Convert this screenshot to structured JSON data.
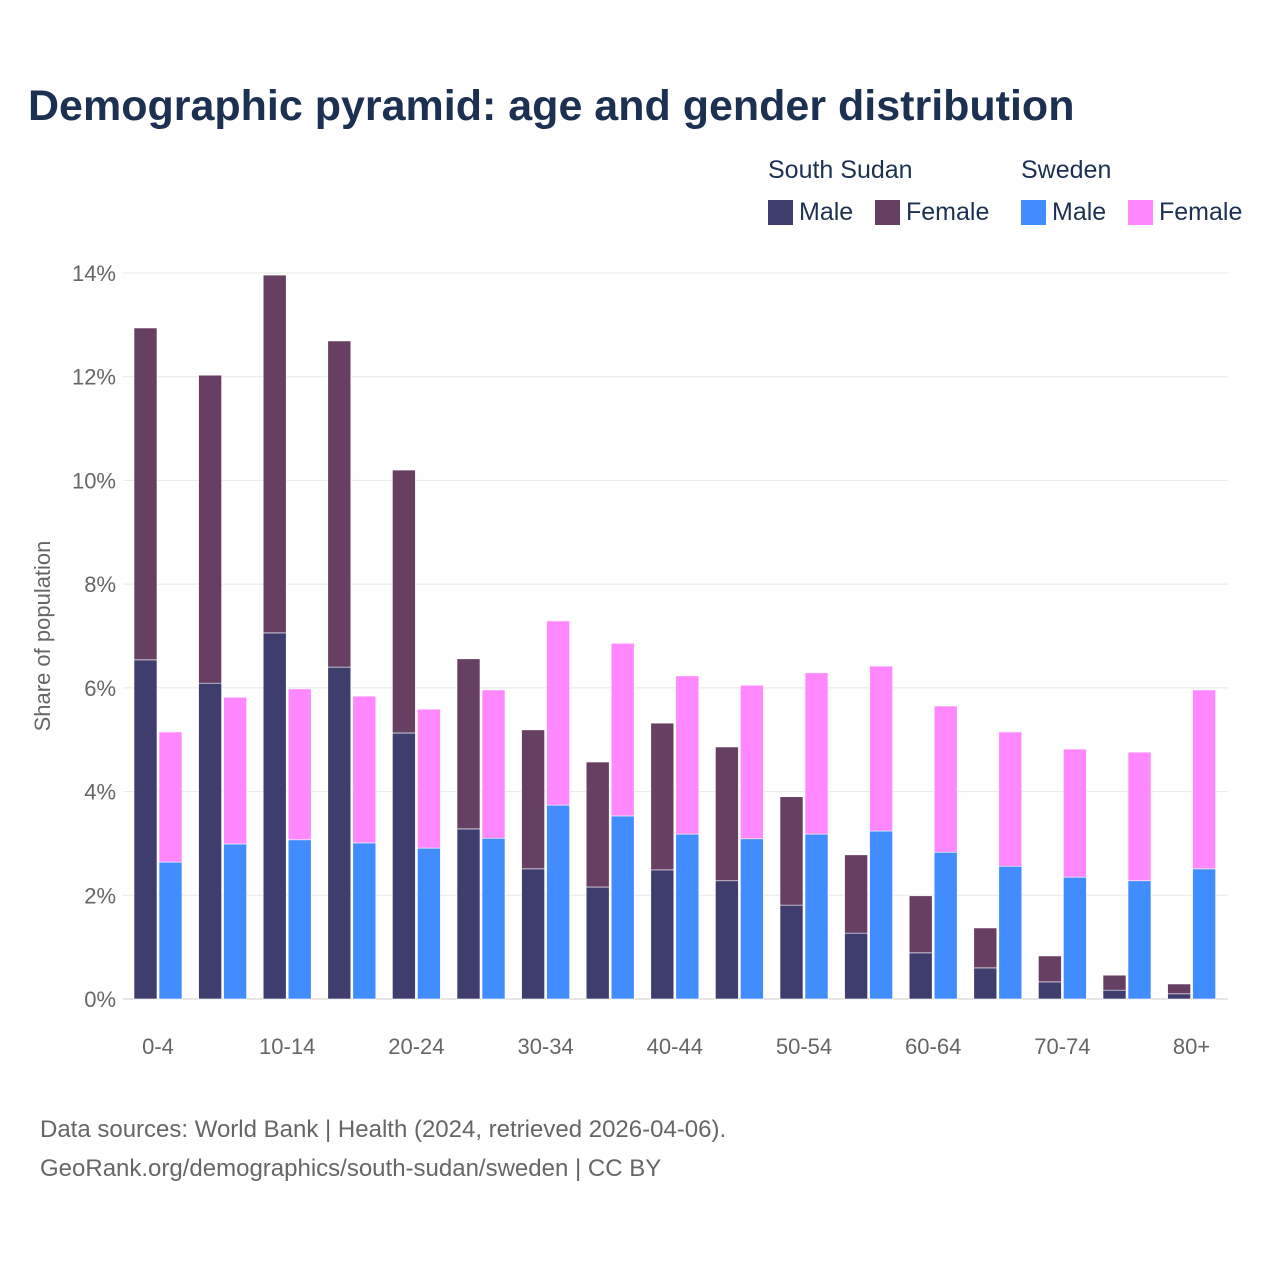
{
  "chart_data": {
    "type": "bar",
    "stacked": true,
    "title": "Demographic pyramid: age and gender distribution",
    "ylabel": "Share of population",
    "xlabel": "",
    "ylim": [
      0,
      14
    ],
    "yticks": [
      "0%",
      "2%",
      "4%",
      "6%",
      "8%",
      "10%",
      "12%",
      "14%"
    ],
    "grid": true,
    "legend_position": "top-right",
    "categories": [
      "0-4",
      "5-9",
      "10-14",
      "15-19",
      "20-24",
      "25-29",
      "30-34",
      "35-39",
      "40-44",
      "45-49",
      "50-54",
      "55-59",
      "60-64",
      "65-69",
      "70-74",
      "75-79",
      "80+"
    ],
    "xtick_labels": [
      "0-4",
      "",
      "10-14",
      "",
      "20-24",
      "",
      "30-34",
      "",
      "40-44",
      "",
      "50-54",
      "",
      "60-64",
      "",
      "70-74",
      "",
      "80+"
    ],
    "countries": [
      {
        "name": "South Sudan",
        "series": [
          {
            "name": "Male",
            "color": "#3f3d6e",
            "values": [
              6.54,
              6.09,
              7.06,
              6.4,
              5.13,
              3.28,
              2.51,
              2.16,
              2.49,
              2.28,
              1.81,
              1.27,
              0.89,
              0.6,
              0.33,
              0.17,
              0.1
            ]
          },
          {
            "name": "Female",
            "color": "#673f63",
            "values": [
              6.4,
              5.94,
              6.9,
              6.29,
              5.07,
              3.28,
              2.68,
              2.41,
              2.83,
              2.58,
              2.09,
              1.51,
              1.1,
              0.77,
              0.5,
              0.29,
              0.19
            ]
          }
        ]
      },
      {
        "name": "Sweden",
        "series": [
          {
            "name": "Male",
            "color": "#418cff",
            "values": [
              2.64,
              2.99,
              3.07,
              3.01,
              2.91,
              3.1,
              3.74,
              3.53,
              3.18,
              3.09,
              3.18,
              3.24,
              2.83,
              2.56,
              2.35,
              2.28,
              2.51
            ]
          },
          {
            "name": "Female",
            "color": "#ff88ff",
            "values": [
              2.51,
              2.83,
              2.91,
              2.83,
              2.68,
              2.86,
              3.55,
              3.33,
              3.05,
              2.96,
              3.11,
              3.18,
              2.82,
              2.59,
              2.47,
              2.48,
              3.45
            ]
          }
        ]
      }
    ]
  },
  "footer": {
    "line1": "Data sources: World Bank | Health (2024, retrieved 2026-04-06).",
    "line2": "GeoRank.org/demographics/south-sudan/sweden | CC BY"
  }
}
